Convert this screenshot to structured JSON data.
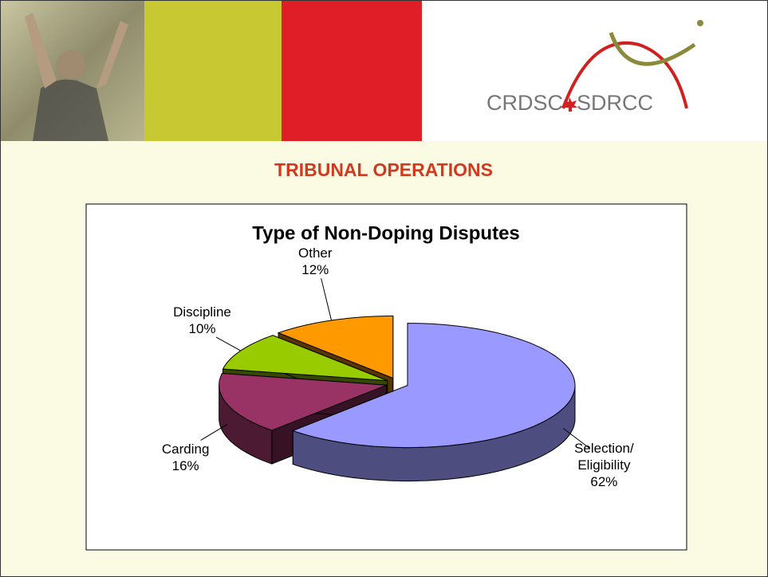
{
  "header": {
    "title": "TRIBUNAL OPERATIONS",
    "logo": [
      "CRDSC",
      "SDRCC"
    ]
  },
  "chart_data": {
    "type": "pie",
    "title": "Type of Non-Doping Disputes",
    "categories": [
      "Selection/ Eligibility",
      "Carding",
      "Discipline",
      "Other"
    ],
    "values": [
      62,
      16,
      10,
      12
    ],
    "value_labels": [
      "62%",
      "16%",
      "10%",
      "12%"
    ],
    "colors": [
      "#9999ff",
      "#993366",
      "#99cc00",
      "#ff9900"
    ]
  }
}
